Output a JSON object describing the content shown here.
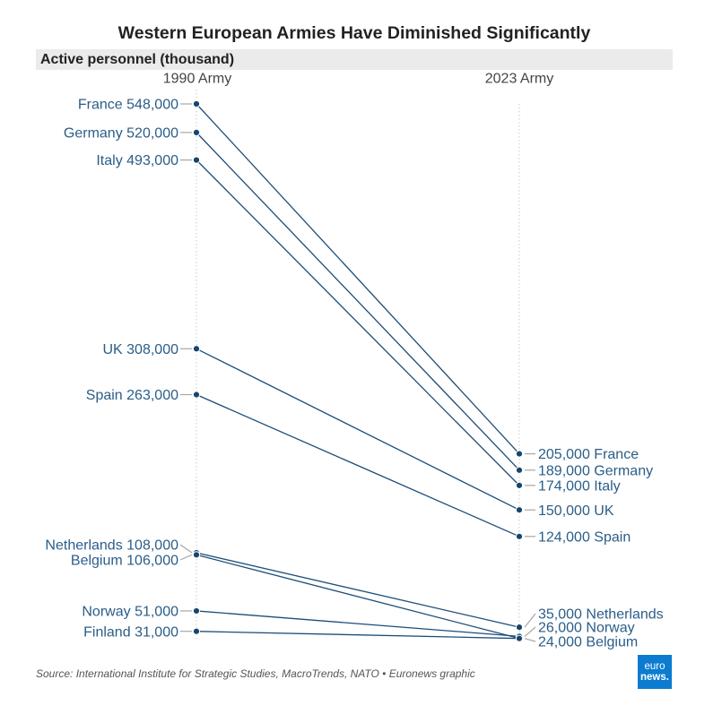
{
  "chart_data": {
    "type": "line",
    "title": "Western European Armies Have Diminished Significantly",
    "subtitle": "Active personnel (thousand)",
    "x": [
      "1990 Army",
      "2023 Army"
    ],
    "ylim": [
      0,
      548
    ],
    "grid": false,
    "series": [
      {
        "name": "France",
        "values": [
          548,
          205
        ],
        "value_labels": [
          "548,000",
          "205,000"
        ]
      },
      {
        "name": "Germany",
        "values": [
          520,
          189
        ],
        "value_labels": [
          "520,000",
          "189,000"
        ]
      },
      {
        "name": "Italy",
        "values": [
          493,
          174
        ],
        "value_labels": [
          "493,000",
          "174,000"
        ]
      },
      {
        "name": "UK",
        "values": [
          308,
          150
        ],
        "value_labels": [
          "308,000",
          "150,000"
        ]
      },
      {
        "name": "Spain",
        "values": [
          263,
          124
        ],
        "value_labels": [
          "263,000",
          "124,000"
        ]
      },
      {
        "name": "Netherlands",
        "values": [
          108,
          35
        ],
        "value_labels": [
          "108,000",
          "35,000"
        ]
      },
      {
        "name": "Belgium",
        "values": [
          106,
          24
        ],
        "value_labels": [
          "106,000",
          "24,000"
        ]
      },
      {
        "name": "Norway",
        "values": [
          51,
          26
        ],
        "value_labels": [
          "51,000",
          "26,000"
        ]
      },
      {
        "name": "Finland",
        "values": [
          31,
          24
        ],
        "value_labels": [
          "31,000",
          null
        ]
      }
    ],
    "colors": {
      "line": "#1d4d77",
      "point": "#17456d",
      "label": "#2a5d88",
      "connector": "#a6a6a6",
      "guide": "#c9c9c9",
      "band": "#ebebeb",
      "logo": "#0b7ccf"
    }
  },
  "source": "Source: International Institute for Strategic Studies, MacroTrends, NATO • Euronews graphic",
  "logo": {
    "line1": "euro",
    "line2": "news."
  }
}
